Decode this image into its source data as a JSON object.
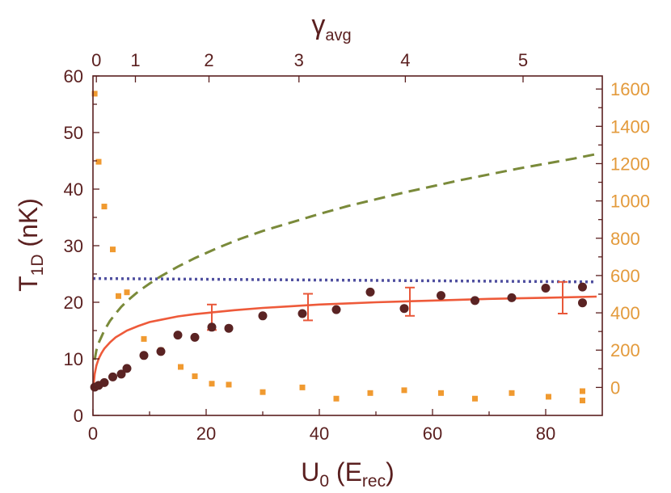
{
  "chart_data": {
    "type": "scatter",
    "xlabel": "U",
    "xlabel_sub": "0",
    "xlabel_unit_open": " (E",
    "xlabel_unit_sub": "rec",
    "xlabel_unit_close": ")",
    "ylabel": "T",
    "ylabel_sub": "1D",
    "ylabel_unit": " (nK)",
    "top_label": "γ",
    "top_label_sub": "avg",
    "xlim": [
      0,
      90
    ],
    "ylim": [
      0,
      60
    ],
    "y2lim": [
      -150,
      1670
    ],
    "x_ticks": [
      0,
      20,
      40,
      60,
      80
    ],
    "y_ticks": [
      0,
      10,
      20,
      30,
      40,
      50,
      60
    ],
    "y2_ticks": [
      0,
      200,
      400,
      600,
      800,
      1000,
      1200,
      1400,
      1600
    ],
    "top_ticks": [
      {
        "label": "0",
        "u": 0.6
      },
      {
        "label": "1",
        "u": 7.5
      },
      {
        "label": "2",
        "u": 20.5
      },
      {
        "label": "3",
        "u": 36.4
      },
      {
        "label": "4",
        "u": 55.2
      },
      {
        "label": "5",
        "u": 76.0
      }
    ],
    "colors": {
      "axis": "#5a1f1f",
      "right_axis": "#e39a3b",
      "dots": "#5a2323",
      "squares": "#f09a30",
      "solid_line": "#ee5a3a",
      "dashed_line": "#7a8a3a",
      "dotted_line": "#5050a0",
      "error_bars": "#e8583a"
    },
    "series": [
      {
        "name": "T1D data",
        "kind": "dots",
        "axis": "left",
        "x": [
          0.3,
          1.0,
          2.0,
          3.5,
          5.0,
          6.0,
          9.0,
          12.0,
          15.0,
          18.0,
          21.0,
          24.0,
          30.0,
          37.0,
          43.0,
          49.0,
          55.0,
          61.5,
          67.5,
          74.0,
          80.0,
          86.5,
          86.5
        ],
        "y": [
          5.0,
          5.3,
          5.8,
          6.8,
          7.3,
          8.3,
          10.6,
          11.3,
          14.2,
          13.8,
          15.6,
          15.4,
          17.6,
          18.0,
          18.7,
          21.8,
          18.9,
          21.2,
          20.3,
          20.8,
          22.5,
          22.7,
          19.9
        ]
      },
      {
        "name": "right-axis data",
        "kind": "squares",
        "axis": "right",
        "x": [
          0.3,
          1.0,
          2.0,
          3.5,
          4.5,
          6.0,
          9.0,
          12.0,
          15.5,
          18.0,
          21.0,
          24.0,
          30.0,
          37.0,
          43.0,
          49.0,
          55.0,
          61.5,
          67.5,
          74.0,
          80.5,
          86.5,
          86.5
        ],
        "y": [
          1575,
          1210,
          970,
          740,
          490,
          510,
          260,
          200,
          110,
          60,
          20,
          15,
          -25,
          0,
          -60,
          -30,
          -15,
          -30,
          -60,
          -30,
          -50,
          -20,
          -70
        ]
      },
      {
        "name": "solid curve",
        "kind": "line-solid",
        "axis": "left",
        "x": [
          0.1,
          0.3,
          0.6,
          1,
          1.5,
          2,
          3,
          4,
          5,
          6,
          8,
          10,
          12,
          15,
          18,
          21,
          25,
          30,
          35,
          40,
          45,
          50,
          60,
          70,
          80,
          89
        ],
        "y": [
          5.3,
          7.3,
          8.8,
          10.0,
          11.0,
          11.8,
          12.9,
          13.8,
          14.4,
          15.0,
          15.8,
          16.5,
          16.9,
          17.5,
          17.9,
          18.2,
          18.6,
          19.0,
          19.3,
          19.6,
          19.8,
          20.0,
          20.3,
          20.6,
          20.8,
          21.0
        ]
      },
      {
        "name": "dashed curve",
        "kind": "line-dashed",
        "axis": "left",
        "x": [
          0.3,
          0.6,
          1,
          2,
          3,
          4,
          5,
          6,
          8,
          10,
          12,
          15,
          18,
          22,
          26,
          30,
          35,
          40,
          45,
          50,
          55,
          60,
          65,
          70,
          75,
          80,
          85,
          89
        ],
        "y": [
          9.8,
          11.5,
          12.8,
          15.0,
          16.7,
          18.0,
          19.2,
          20.2,
          21.9,
          23.3,
          24.6,
          26.3,
          27.8,
          29.6,
          31.2,
          32.6,
          34.1,
          35.6,
          37.0,
          38.2,
          39.4,
          40.5,
          41.6,
          42.6,
          43.6,
          44.5,
          45.4,
          46.2
        ]
      },
      {
        "name": "dotted line",
        "kind": "line-dotted",
        "axis": "left",
        "x": [
          0,
          89
        ],
        "y": [
          24.2,
          23.6
        ]
      }
    ],
    "error_bars": [
      {
        "x": 21.0,
        "y": 17.3,
        "lo": 15.1,
        "hi": 19.6
      },
      {
        "x": 38.0,
        "y": 19.0,
        "lo": 16.8,
        "hi": 21.5
      },
      {
        "x": 56.0,
        "y": 20.2,
        "lo": 17.6,
        "hi": 22.6
      },
      {
        "x": 83.0,
        "y": 20.8,
        "lo": 18.0,
        "hi": 23.6
      }
    ]
  }
}
